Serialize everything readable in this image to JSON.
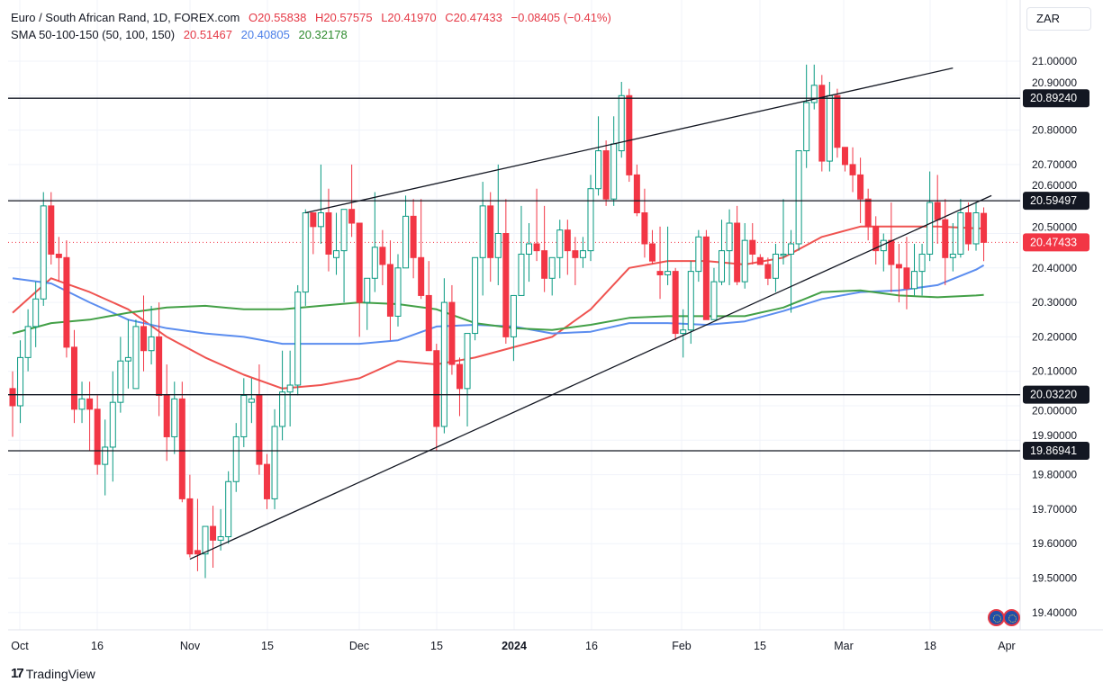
{
  "header": {
    "symbol": "Euro / South African Rand, 1D, FOREX.com",
    "open": "O20.55838",
    "high": "H20.57575",
    "low": "L20.41970",
    "close": "C20.47433",
    "change": "−0.08405 (−0.41%)",
    "indicator": "SMA 50-100-150 (50, 100, 150)",
    "sma50": "20.51467",
    "sma100": "20.40805",
    "sma150": "20.32178"
  },
  "currency_button": "ZAR",
  "branding": "TradingView",
  "colors": {
    "up": "#089981",
    "down": "#f23645",
    "sma50": "#ef5350",
    "sma100": "#5b8def",
    "sma150": "#43a047",
    "level": "#131722",
    "last_price": "#f23645"
  },
  "chart_data": {
    "type": "candlestick",
    "title": "Euro / South African Rand, 1D, FOREX.com",
    "ylim": [
      19.35,
      21.05
    ],
    "y_ticks": [
      "21.00000",
      "20.90000",
      "20.80000",
      "20.70000",
      "20.60000",
      "20.50000",
      "20.40000",
      "20.30000",
      "20.20000",
      "20.10000",
      "20.00000",
      "19.90000",
      "19.80000",
      "19.70000",
      "19.60000",
      "19.50000",
      "19.40000"
    ],
    "x_ticks": [
      {
        "label": "Oct",
        "bold": false
      },
      {
        "label": "16",
        "bold": false
      },
      {
        "label": "Nov",
        "bold": false
      },
      {
        "label": "15",
        "bold": false
      },
      {
        "label": "Dec",
        "bold": false
      },
      {
        "label": "15",
        "bold": false
      },
      {
        "label": "2024",
        "bold": true
      },
      {
        "label": "16",
        "bold": false
      },
      {
        "label": "Feb",
        "bold": false
      },
      {
        "label": "15",
        "bold": false
      },
      {
        "label": "Mar",
        "bold": false
      },
      {
        "label": "18",
        "bold": false
      },
      {
        "label": "Apr",
        "bold": false
      }
    ],
    "grid": true,
    "candles_ohlc": [
      [
        20.05,
        20.1,
        19.91,
        20.0
      ],
      [
        20.0,
        20.19,
        19.95,
        20.14
      ],
      [
        20.14,
        20.28,
        20.1,
        20.23
      ],
      [
        20.23,
        20.36,
        20.17,
        20.31
      ],
      [
        20.31,
        20.62,
        20.29,
        20.58
      ],
      [
        20.58,
        20.62,
        20.41,
        20.44
      ],
      [
        20.44,
        20.49,
        20.36,
        20.43
      ],
      [
        20.43,
        20.48,
        20.14,
        20.17
      ],
      [
        20.17,
        20.22,
        19.95,
        19.99
      ],
      [
        19.99,
        20.07,
        19.95,
        20.02
      ],
      [
        20.02,
        20.07,
        19.87,
        19.99
      ],
      [
        19.99,
        20.03,
        19.8,
        19.83
      ],
      [
        19.83,
        19.96,
        19.74,
        19.88
      ],
      [
        19.88,
        20.1,
        19.78,
        20.01
      ],
      [
        20.01,
        20.2,
        19.98,
        20.13
      ],
      [
        20.13,
        20.25,
        20.05,
        20.14
      ],
      [
        20.05,
        20.25,
        20.05,
        20.23
      ],
      [
        20.23,
        20.32,
        20.1,
        20.16
      ],
      [
        20.16,
        20.29,
        20.12,
        20.2
      ],
      [
        20.2,
        20.3,
        19.97,
        20.03
      ],
      [
        20.03,
        20.12,
        19.84,
        19.91
      ],
      [
        19.91,
        20.07,
        19.86,
        20.02
      ],
      [
        20.02,
        20.07,
        19.72,
        19.73
      ],
      [
        19.73,
        19.8,
        19.56,
        19.57
      ],
      [
        19.58,
        19.73,
        19.52,
        19.57
      ],
      [
        19.57,
        19.65,
        19.5,
        19.65
      ],
      [
        19.65,
        19.71,
        19.53,
        19.61
      ],
      [
        19.61,
        19.7,
        19.58,
        19.62
      ],
      [
        19.62,
        19.81,
        19.6,
        19.78
      ],
      [
        19.78,
        19.95,
        19.75,
        19.91
      ],
      [
        19.91,
        20.08,
        19.88,
        20.03
      ],
      [
        20.01,
        20.08,
        19.95,
        20.02
      ],
      [
        20.03,
        20.12,
        19.8,
        19.83
      ],
      [
        19.83,
        19.86,
        19.7,
        19.73
      ],
      [
        19.73,
        19.99,
        19.7,
        19.94
      ],
      [
        19.94,
        20.16,
        19.9,
        20.04
      ],
      [
        20.04,
        20.16,
        19.94,
        20.06
      ],
      [
        20.06,
        20.35,
        20.03,
        20.33
      ],
      [
        20.33,
        20.57,
        20.29,
        20.56
      ],
      [
        20.56,
        20.56,
        20.44,
        20.52
      ],
      [
        20.52,
        20.7,
        20.47,
        20.56
      ],
      [
        20.56,
        20.63,
        20.39,
        20.44
      ],
      [
        20.43,
        20.56,
        20.38,
        20.45
      ],
      [
        20.45,
        20.57,
        20.3,
        20.57
      ],
      [
        20.57,
        20.7,
        20.49,
        20.53
      ],
      [
        20.53,
        20.53,
        20.2,
        20.3
      ],
      [
        20.3,
        20.37,
        20.22,
        20.37
      ],
      [
        20.37,
        20.62,
        20.33,
        20.46
      ],
      [
        20.46,
        20.51,
        20.35,
        20.41
      ],
      [
        20.41,
        20.48,
        20.19,
        20.26
      ],
      [
        20.26,
        20.44,
        20.23,
        20.4
      ],
      [
        20.4,
        20.61,
        20.4,
        20.55
      ],
      [
        20.55,
        20.6,
        20.37,
        20.43
      ],
      [
        20.43,
        20.6,
        20.31,
        20.32
      ],
      [
        20.32,
        20.42,
        20.16,
        20.16
      ],
      [
        20.16,
        20.18,
        19.87,
        19.94
      ],
      [
        19.94,
        20.37,
        19.92,
        20.3
      ],
      [
        20.3,
        20.35,
        20.09,
        20.12
      ],
      [
        20.12,
        20.14,
        19.97,
        20.05
      ],
      [
        20.05,
        20.21,
        19.94,
        20.21
      ],
      [
        20.21,
        20.43,
        20.19,
        20.43
      ],
      [
        20.43,
        20.65,
        20.32,
        20.58
      ],
      [
        20.58,
        20.62,
        20.36,
        20.43
      ],
      [
        20.43,
        20.7,
        20.35,
        20.5
      ],
      [
        20.5,
        20.6,
        20.18,
        20.2
      ],
      [
        20.2,
        20.32,
        20.13,
        20.32
      ],
      [
        20.32,
        20.58,
        20.32,
        20.44
      ],
      [
        20.44,
        20.53,
        20.36,
        20.47
      ],
      [
        20.47,
        20.63,
        20.42,
        20.45
      ],
      [
        20.45,
        20.58,
        20.33,
        20.37
      ],
      [
        20.37,
        20.4,
        20.32,
        20.43
      ],
      [
        20.43,
        20.54,
        20.37,
        20.51
      ],
      [
        20.51,
        20.54,
        20.38,
        20.45
      ],
      [
        20.45,
        20.49,
        20.35,
        20.43
      ],
      [
        20.43,
        20.49,
        20.4,
        20.45
      ],
      [
        20.45,
        20.67,
        20.42,
        20.63
      ],
      [
        20.63,
        20.84,
        20.61,
        20.74
      ],
      [
        20.74,
        20.77,
        20.58,
        20.6
      ],
      [
        20.6,
        20.84,
        20.58,
        20.76
      ],
      [
        20.74,
        20.94,
        20.72,
        20.9
      ],
      [
        20.9,
        20.92,
        20.65,
        20.67
      ],
      [
        20.67,
        20.7,
        20.55,
        20.56
      ],
      [
        20.56,
        20.63,
        20.43,
        20.47
      ],
      [
        20.47,
        20.51,
        20.41,
        20.42
      ],
      [
        20.39,
        20.52,
        20.31,
        20.38
      ],
      [
        20.38,
        20.52,
        20.35,
        20.39
      ],
      [
        20.39,
        20.4,
        20.19,
        20.21
      ],
      [
        20.21,
        20.28,
        20.14,
        20.22
      ],
      [
        20.22,
        20.42,
        20.18,
        20.39
      ],
      [
        20.39,
        20.51,
        20.36,
        20.49
      ],
      [
        20.49,
        20.51,
        20.25,
        20.25
      ],
      [
        20.25,
        20.4,
        20.25,
        20.36
      ],
      [
        20.36,
        20.54,
        20.35,
        20.45
      ],
      [
        20.45,
        20.57,
        20.35,
        20.53
      ],
      [
        20.53,
        20.58,
        20.35,
        20.36
      ],
      [
        20.36,
        20.53,
        20.34,
        20.48
      ],
      [
        20.48,
        20.53,
        20.41,
        20.44
      ],
      [
        20.43,
        20.44,
        20.41,
        20.41
      ],
      [
        20.41,
        20.43,
        20.35,
        20.37
      ],
      [
        20.37,
        20.47,
        20.33,
        20.44
      ],
      [
        20.44,
        20.6,
        20.41,
        20.44
      ],
      [
        20.44,
        20.51,
        20.27,
        20.47
      ],
      [
        20.47,
        20.74,
        20.45,
        20.74
      ],
      [
        20.74,
        20.99,
        20.69,
        20.88
      ],
      [
        20.88,
        20.99,
        20.86,
        20.93
      ],
      [
        20.93,
        20.96,
        20.68,
        20.71
      ],
      [
        20.71,
        20.94,
        20.68,
        20.9
      ],
      [
        20.9,
        20.92,
        20.72,
        20.75
      ],
      [
        20.75,
        20.75,
        20.68,
        20.7
      ],
      [
        20.7,
        20.75,
        20.62,
        20.67
      ],
      [
        20.67,
        20.72,
        20.53,
        20.6
      ],
      [
        20.6,
        20.63,
        20.48,
        20.52
      ],
      [
        20.52,
        20.55,
        20.41,
        20.45
      ],
      [
        20.45,
        20.5,
        20.39,
        20.48
      ],
      [
        20.48,
        20.59,
        20.33,
        20.41
      ],
      [
        20.41,
        20.47,
        20.3,
        20.4
      ],
      [
        20.4,
        20.49,
        20.28,
        20.34
      ],
      [
        20.34,
        20.47,
        20.32,
        20.39
      ],
      [
        20.39,
        20.47,
        20.32,
        20.44
      ],
      [
        20.44,
        20.68,
        20.42,
        20.59
      ],
      [
        20.59,
        20.67,
        20.47,
        20.54
      ],
      [
        20.54,
        20.6,
        20.35,
        20.43
      ],
      [
        20.43,
        20.53,
        20.39,
        20.44
      ],
      [
        20.44,
        20.6,
        20.43,
        20.56
      ],
      [
        20.56,
        20.59,
        20.45,
        20.47
      ],
      [
        20.47,
        20.59,
        20.45,
        20.56
      ],
      [
        20.55838,
        20.57575,
        20.4197,
        20.47433
      ]
    ],
    "series": [
      {
        "name": "SMA 50",
        "color": "#ef5350",
        "values": [
          20.27,
          20.37,
          20.33,
          20.28,
          20.2,
          20.14,
          20.09,
          20.05,
          20.06,
          20.08,
          20.13,
          20.12,
          20.14,
          20.17,
          20.2,
          20.28,
          20.4,
          20.42,
          20.42,
          20.41,
          20.43,
          20.49,
          20.52,
          20.52,
          20.52,
          20.515,
          20.51467
        ]
      },
      {
        "name": "SMA 100",
        "color": "#5b8def",
        "values": [
          20.37,
          20.355,
          20.3,
          20.25,
          20.225,
          20.21,
          20.2,
          20.18,
          20.18,
          20.18,
          20.19,
          20.23,
          20.235,
          20.23,
          20.21,
          20.215,
          20.24,
          20.24,
          20.235,
          20.245,
          20.275,
          20.31,
          20.33,
          20.335,
          20.35,
          20.395,
          20.40805
        ]
      },
      {
        "name": "SMA 150",
        "color": "#43a047",
        "values": [
          20.21,
          20.24,
          20.25,
          20.27,
          20.285,
          20.29,
          20.28,
          20.28,
          20.29,
          20.3,
          20.295,
          20.28,
          20.24,
          20.225,
          20.22,
          20.235,
          20.255,
          20.26,
          20.26,
          20.26,
          20.285,
          20.33,
          20.335,
          20.32,
          20.315,
          20.32,
          20.32178
        ]
      }
    ],
    "horizontal_levels": [
      "20.89240",
      "20.59497",
      "20.03220",
      "19.86941"
    ],
    "last_price": "20.47433",
    "trendlines": [
      {
        "from_bar": 23,
        "from_price": 19.555,
        "to_bar": 127,
        "to_price": 20.61
      },
      {
        "from_bar": 38,
        "from_price": 20.56,
        "to_bar": 122,
        "to_price": 20.98
      }
    ]
  }
}
